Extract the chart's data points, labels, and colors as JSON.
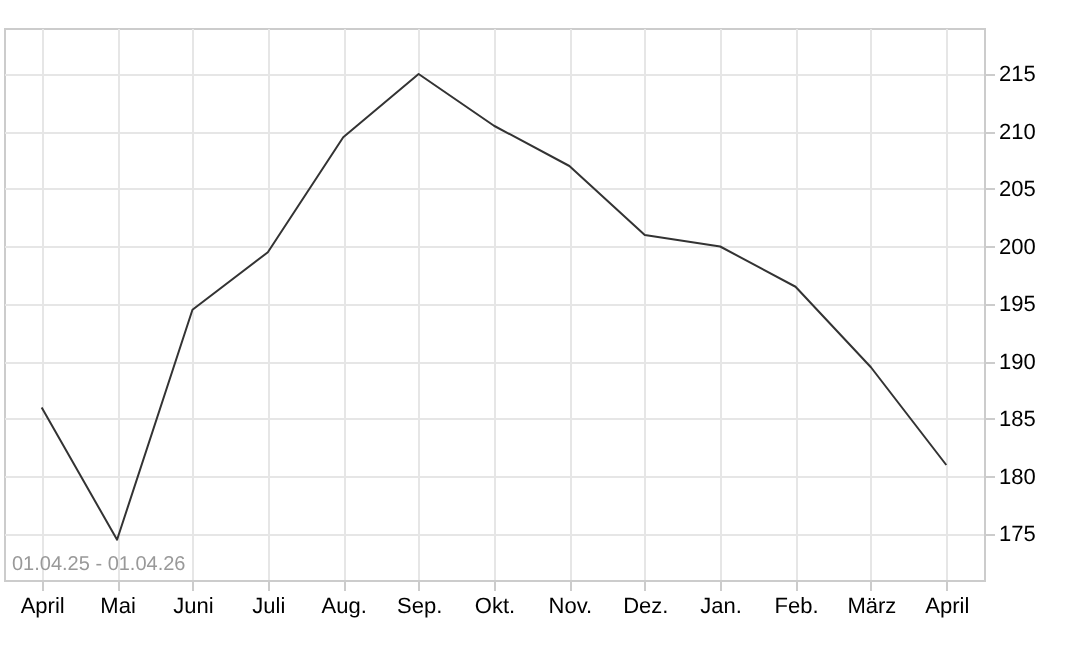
{
  "chart_data": {
    "type": "line",
    "categories": [
      "April",
      "Mai",
      "Juni",
      "Juli",
      "Aug.",
      "Sep.",
      "Okt.",
      "Nov.",
      "Dez.",
      "Jan.",
      "Feb.",
      "März",
      "April"
    ],
    "series": [
      {
        "color": "#333333",
        "values": [
          186,
          174.5,
          194.5,
          199.5,
          209.5,
          215,
          210.5,
          207,
          201,
          200,
          196.5,
          189.5,
          181
        ]
      }
    ],
    "ylim": [
      171,
      219
    ],
    "yticks": [
      175,
      180,
      185,
      190,
      195,
      200,
      205,
      210,
      215
    ],
    "grid": true,
    "annotations": [
      "01.04.25 - 01.04.26"
    ]
  }
}
